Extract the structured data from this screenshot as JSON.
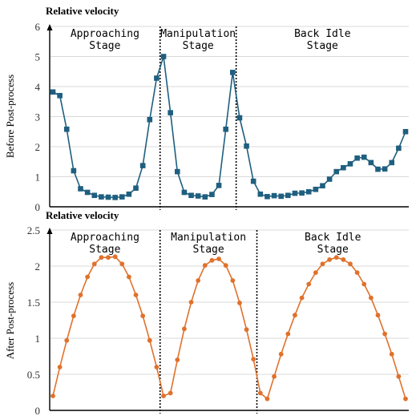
{
  "chart_data": [
    {
      "type": "line",
      "title": "Relative velocity",
      "ylabel": "Before Post-process",
      "xlabel": "",
      "ylim": [
        0,
        6
      ],
      "yticks": [
        "0",
        "1",
        "2",
        "3",
        "4",
        "5",
        "6"
      ],
      "grid": true,
      "marker": "square",
      "color": "#1f5f7f",
      "stages": [
        "Approaching\nStage",
        "Manipulation\nStage",
        "Back Idle\nStage"
      ],
      "stage_boundaries_after_index": [
        15.5,
        26.5
      ],
      "series": [
        {
          "values": [
            3.82,
            3.7,
            2.58,
            1.2,
            0.6,
            0.48,
            0.38,
            0.33,
            0.32,
            0.31,
            0.33,
            0.42,
            0.62,
            1.37,
            2.9,
            4.28,
            5.0,
            3.13,
            1.17,
            0.48,
            0.38,
            0.36,
            0.33,
            0.41,
            0.71,
            2.58,
            4.47,
            2.96,
            2.02,
            0.85,
            0.42,
            0.34,
            0.37,
            0.35,
            0.38,
            0.45,
            0.46,
            0.5,
            0.58,
            0.7,
            0.92,
            1.17,
            1.3,
            1.43,
            1.62,
            1.65,
            1.47,
            1.25,
            1.26,
            1.47,
            1.95,
            2.5
          ]
        }
      ]
    },
    {
      "type": "line",
      "title": "Relative velocity",
      "ylabel": "After Post-process",
      "xlabel": "",
      "ylim": [
        0,
        2.5
      ],
      "yticks": [
        "0",
        "0.5",
        "1",
        "1.5",
        "2",
        "2.5"
      ],
      "grid": true,
      "marker": "circle",
      "color": "#e0712b",
      "stages": [
        "Approaching\nStage",
        "Manipulation\nStage",
        "Back Idle\nStage"
      ],
      "stage_boundaries_after_index": [
        15.5,
        29.5
      ],
      "series": [
        {
          "values": [
            0.2,
            0.6,
            0.97,
            1.31,
            1.6,
            1.85,
            2.03,
            2.12,
            2.12,
            2.13,
            2.03,
            1.85,
            1.6,
            1.31,
            0.97,
            0.6,
            0.2,
            0.24,
            0.7,
            1.13,
            1.5,
            1.8,
            2.01,
            2.08,
            2.1,
            2.01,
            1.8,
            1.49,
            1.12,
            0.71,
            0.24,
            0.16,
            0.47,
            0.78,
            1.06,
            1.32,
            1.56,
            1.75,
            1.91,
            2.03,
            2.09,
            2.12,
            2.09,
            2.03,
            1.91,
            1.75,
            1.56,
            1.32,
            1.06,
            0.78,
            0.47,
            0.16
          ]
        }
      ]
    }
  ]
}
